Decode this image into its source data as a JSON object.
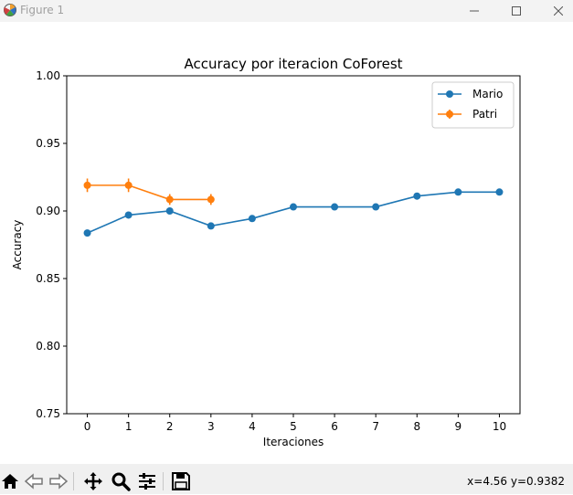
{
  "window": {
    "title": "Figure 1"
  },
  "toolbar": {
    "buttons": [
      "home-icon",
      "back-icon",
      "forward-icon",
      "pan-icon",
      "zoom-icon",
      "configure-subplots-icon",
      "save-icon"
    ],
    "coordinates": "x=4.56  y=0.9382"
  },
  "chart_data": {
    "type": "line",
    "title": "Accuracy por iteracion CoForest",
    "xlabel": "Iteraciones",
    "ylabel": "Accuracy",
    "xlim": [
      -0.5,
      10.5
    ],
    "ylim": [
      0.75,
      1.0
    ],
    "xticks": [
      "0",
      "1",
      "2",
      "3",
      "4",
      "5",
      "6",
      "7",
      "8",
      "9",
      "10"
    ],
    "yticks": [
      "0.75",
      "0.80",
      "0.85",
      "0.90",
      "0.95",
      "1.00"
    ],
    "grid": false,
    "legend_position": "top-right",
    "series": [
      {
        "name": "Mario",
        "color": "#1f77b4",
        "x": [
          0,
          1,
          2,
          3,
          4,
          5,
          6,
          7,
          8,
          9,
          10
        ],
        "values": [
          0.8837,
          0.897,
          0.9,
          0.8889,
          0.8944,
          0.903,
          0.903,
          0.903,
          0.911,
          0.914,
          0.914
        ]
      },
      {
        "name": "Patri",
        "color": "#ff7f0e",
        "x": [
          0,
          1,
          2,
          3
        ],
        "values": [
          0.919,
          0.919,
          0.9085,
          0.9085
        ],
        "error": [
          0.005,
          0.005,
          0.004,
          0.004
        ]
      }
    ]
  }
}
